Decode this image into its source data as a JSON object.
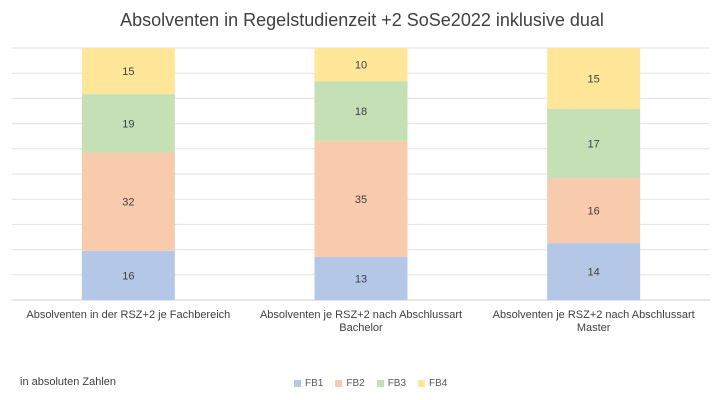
{
  "chart_data": {
    "type": "bar",
    "stacked": true,
    "percent_stacked": true,
    "title": "Absolventen in Regelstudienzeit +2 SoSe2022 inklusive dual",
    "note": "in absoluten Zahlen",
    "categories": [
      "Absolventen in der RSZ+2 je Fachbereich",
      "Absolventen je RSZ+2 nach Abschlussart Bachelor",
      "Absolventen je RSZ+2 nach Abschlussart Master"
    ],
    "series": [
      {
        "name": "FB1",
        "color": "#b4c7e7",
        "values": [
          16,
          13,
          14
        ]
      },
      {
        "name": "FB2",
        "color": "#f8cbad",
        "values": [
          32,
          35,
          16
        ]
      },
      {
        "name": "FB3",
        "color": "#c5e0b4",
        "values": [
          19,
          18,
          17
        ]
      },
      {
        "name": "FB4",
        "color": "#ffe699",
        "values": [
          15,
          10,
          15
        ]
      }
    ],
    "legend_position": "bottom",
    "grid": true,
    "data_labels": true
  }
}
